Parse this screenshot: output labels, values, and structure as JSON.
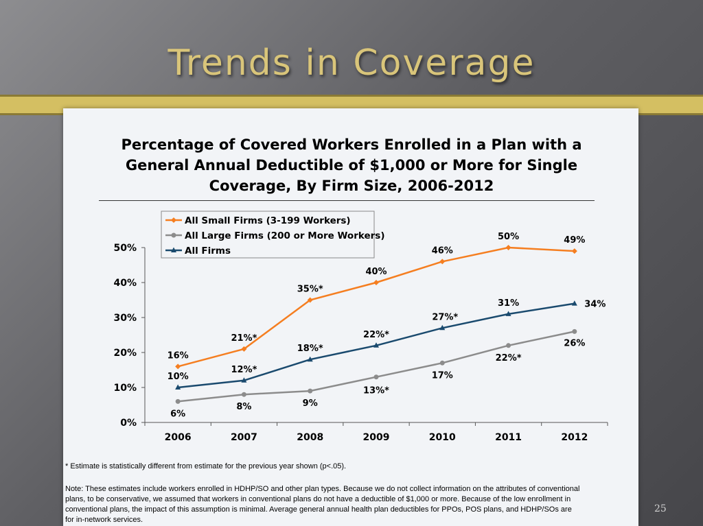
{
  "slide": {
    "title": "Trends in Coverage",
    "page_number": "25"
  },
  "chart_data": {
    "type": "line",
    "title": "Percentage of Covered Workers Enrolled in a Plan with a General Annual Deductible of $1,000 or More for Single Coverage, By Firm Size, 2006-2012",
    "title_lines": [
      "Percentage of Covered Workers Enrolled in a Plan with a",
      "General Annual Deductible of $1,000 or More for Single",
      "Coverage, By Firm Size, 2006-2012"
    ],
    "xlabel": "",
    "ylabel": "",
    "x": [
      "2006",
      "2007",
      "2008",
      "2009",
      "2010",
      "2011",
      "2012"
    ],
    "ylim": [
      0,
      50
    ],
    "y_ticks": [
      "0%",
      "10%",
      "20%",
      "30%",
      "40%",
      "50%"
    ],
    "grid": false,
    "legend_position": "top-left",
    "series": [
      {
        "name": "All Small Firms (3-199 Workers)",
        "color": "#f57e20",
        "marker": "diamond",
        "values": [
          16,
          21,
          35,
          40,
          46,
          50,
          49
        ],
        "labels": [
          "16%",
          "21%*",
          "35%*",
          "40%",
          "46%",
          "50%",
          "49%"
        ]
      },
      {
        "name": "All Large Firms (200 or More Workers)",
        "color": "#8c8c8c",
        "marker": "circle",
        "values": [
          6,
          8,
          9,
          13,
          17,
          22,
          26
        ],
        "labels": [
          "6%",
          "8%",
          "9%",
          "13%*",
          "17%",
          "22%*",
          "26%"
        ]
      },
      {
        "name": "All Firms",
        "color": "#1a4a6e",
        "marker": "triangle",
        "values": [
          10,
          12,
          18,
          22,
          27,
          31,
          34
        ],
        "labels": [
          "10%",
          "12%*",
          "18%*",
          "22%*",
          "27%*",
          "31%",
          "34%"
        ]
      }
    ]
  },
  "footnote": "* Estimate is statistically different from estimate for the previous year shown (p<.05).",
  "note": "Note: These estimates include workers enrolled in HDHP/SO and other plan types. Because we do not collect information on the attributes of conventional plans, to be conservative, we assumed that workers in conventional plans do not have a deductible of $1,000 or more. Because of the low enrollment in conventional plans, the impact of this assumption is minimal. Average general annual health plan deductibles for PPOs, POS plans, and HDHP/SOs are for in-network services."
}
